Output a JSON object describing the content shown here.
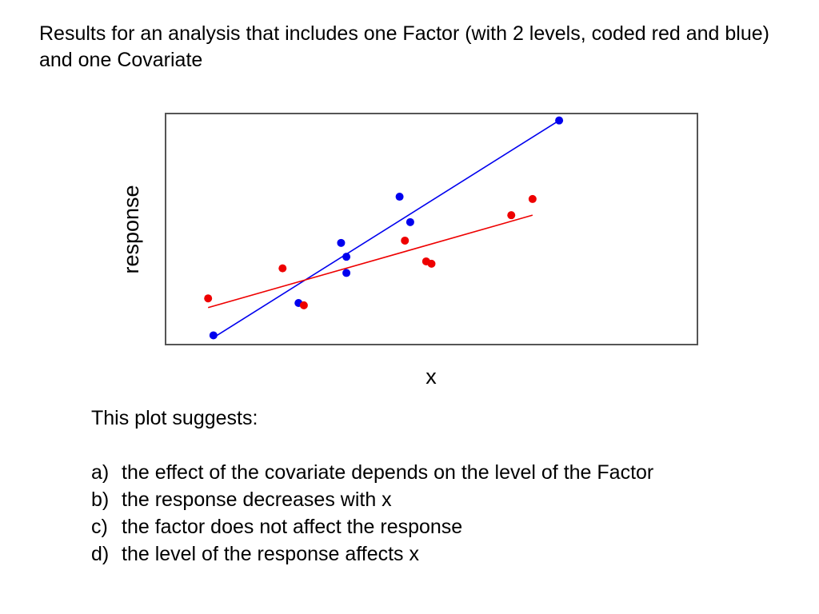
{
  "slide": {
    "title": "Results for an analysis that includes one Factor (with 2 levels, coded red and blue) and one Covariate",
    "question": {
      "prompt": "This plot suggests:",
      "options": [
        {
          "letter": "a)",
          "text": "the effect of the covariate depends on the level of the Factor"
        },
        {
          "letter": "b)",
          "text": "the response decreases with x"
        },
        {
          "letter": "c)",
          "text": "the factor does not affect the response"
        },
        {
          "letter": "d)",
          "text": "the level of the response affects x"
        }
      ]
    }
  },
  "chart_data": {
    "type": "scatter",
    "title": "",
    "xlabel": "x",
    "ylabel": "response",
    "xlim": [
      0,
      100
    ],
    "ylim": [
      0,
      100
    ],
    "grid": false,
    "x_ticks_shown": false,
    "y_ticks_shown": false,
    "series": [
      {
        "name": "",
        "color": "#0000ee",
        "points": [
          {
            "x": 9,
            "y": 4
          },
          {
            "x": 25,
            "y": 18
          },
          {
            "x": 33,
            "y": 44
          },
          {
            "x": 34,
            "y": 38
          },
          {
            "x": 34,
            "y": 31
          },
          {
            "x": 44,
            "y": 64
          },
          {
            "x": 46,
            "y": 53
          },
          {
            "x": 74,
            "y": 97
          }
        ],
        "fit_line": {
          "x": [
            9,
            74
          ],
          "y": [
            3,
            97
          ]
        }
      },
      {
        "name": "",
        "color": "#ee0000",
        "points": [
          {
            "x": 8,
            "y": 20
          },
          {
            "x": 22,
            "y": 33
          },
          {
            "x": 26,
            "y": 17
          },
          {
            "x": 45,
            "y": 45
          },
          {
            "x": 49,
            "y": 36
          },
          {
            "x": 50,
            "y": 35
          },
          {
            "x": 65,
            "y": 56
          },
          {
            "x": 69,
            "y": 63
          }
        ],
        "fit_line": {
          "x": [
            8,
            69
          ],
          "y": [
            16,
            56
          ]
        }
      }
    ]
  }
}
